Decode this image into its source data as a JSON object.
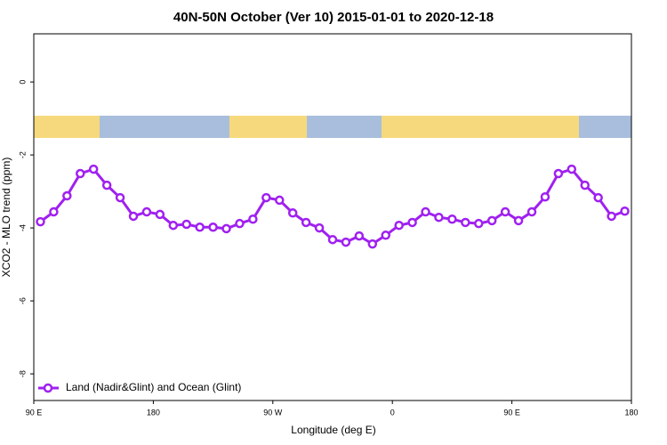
{
  "chart_data": {
    "type": "line",
    "title": "40N-50N October (Ver 10)   2015-01-01 to 2020-12-18",
    "x_label": "Longitude (deg E)",
    "y_label": "XCO2 - MLO trend (ppm)",
    "xlim": [
      90,
      540
    ],
    "xticks": [
      {
        "value": 90,
        "label": "90 E"
      },
      {
        "value": 180,
        "label": "180"
      },
      {
        "value": 270,
        "label": "90 W"
      },
      {
        "value": 360,
        "label": "0"
      },
      {
        "value": 450,
        "label": "90 E"
      },
      {
        "value": 540,
        "label": "180"
      }
    ],
    "ylim": [
      -8.73,
      1.32
    ],
    "yticks": [
      0,
      -2,
      -4,
      -6,
      -8
    ],
    "legend": "bottom-left",
    "x": [
      95,
      105,
      115,
      125,
      135,
      145,
      155,
      165,
      175,
      185,
      195,
      205,
      215,
      225,
      235,
      245,
      255,
      265,
      275,
      285,
      295,
      305,
      315,
      325,
      335,
      345,
      355,
      365,
      375,
      385,
      395,
      405,
      415,
      425,
      435,
      445,
      455,
      465,
      475,
      485,
      495,
      505,
      515,
      525,
      535
    ],
    "series": [
      {
        "name": "Land (Nadir&Glint) and Ocean (Glint)",
        "color": "#a020f0",
        "values": [
          -3.83,
          -3.56,
          -3.12,
          -2.51,
          -2.39,
          -2.83,
          -3.17,
          -3.68,
          -3.56,
          -3.63,
          -3.93,
          -3.9,
          -3.98,
          -3.98,
          -4.02,
          -3.88,
          -3.76,
          -3.17,
          -3.24,
          -3.59,
          -3.85,
          -4.0,
          -4.32,
          -4.39,
          -4.22,
          -4.44,
          -4.2,
          -3.93,
          -3.85,
          -3.56,
          -3.71,
          -3.76,
          -3.85,
          -3.88,
          -3.8,
          -3.56,
          -3.8,
          -3.56,
          -3.15,
          -2.51,
          -2.39,
          -2.83,
          -3.17,
          -3.68,
          -3.54
        ]
      }
    ]
  }
}
